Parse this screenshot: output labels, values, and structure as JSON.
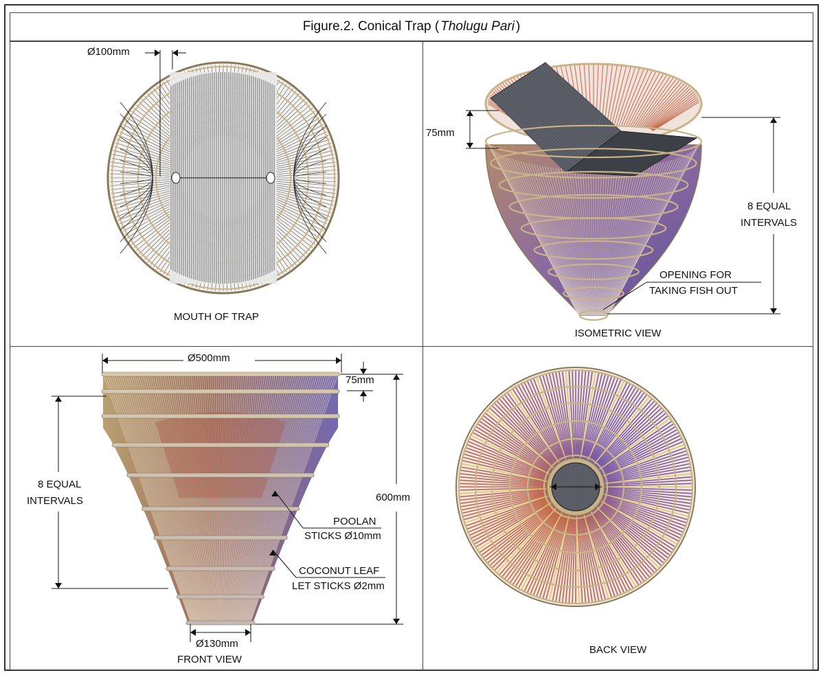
{
  "title": {
    "prefix": "Figure.2. Conical Trap (",
    "italic": "Tholugu Pari",
    "suffix": ")"
  },
  "panels": {
    "mouth": {
      "caption": "MOUTH OF TRAP",
      "dim_hole": "Ø100mm"
    },
    "isometric": {
      "caption": "ISOMETRIC VIEW",
      "dim_gap": "75mm",
      "intervals_line1": "8 EQUAL",
      "intervals_line2": "INTERVALS",
      "opening_line1": "OPENING FOR",
      "opening_line2": "TAKING FISH OUT"
    },
    "front": {
      "caption": "FRONT VIEW",
      "dim_top": "Ø500mm",
      "dim_gap": "75mm",
      "dim_height": "600mm",
      "dim_bottom": "Ø130mm",
      "intervals_line1": "8 EQUAL",
      "intervals_line2": "INTERVALS",
      "poolan_line1": "POOLAN",
      "poolan_line2": "STICKS Ø10mm",
      "coconut_line1": "COCONUT LEAF",
      "coconut_line2": "LET STICKS Ø2mm"
    },
    "back": {
      "caption": "BACK VIEW"
    }
  },
  "colors": {
    "ring": "#c9b48a",
    "ring_dark": "#8a7a5a",
    "stick_dark": "#333333",
    "panel_fill": "#555860",
    "warm": "#c46a4a",
    "violet": "#7a5aa8",
    "yellow": "#e0c870"
  }
}
